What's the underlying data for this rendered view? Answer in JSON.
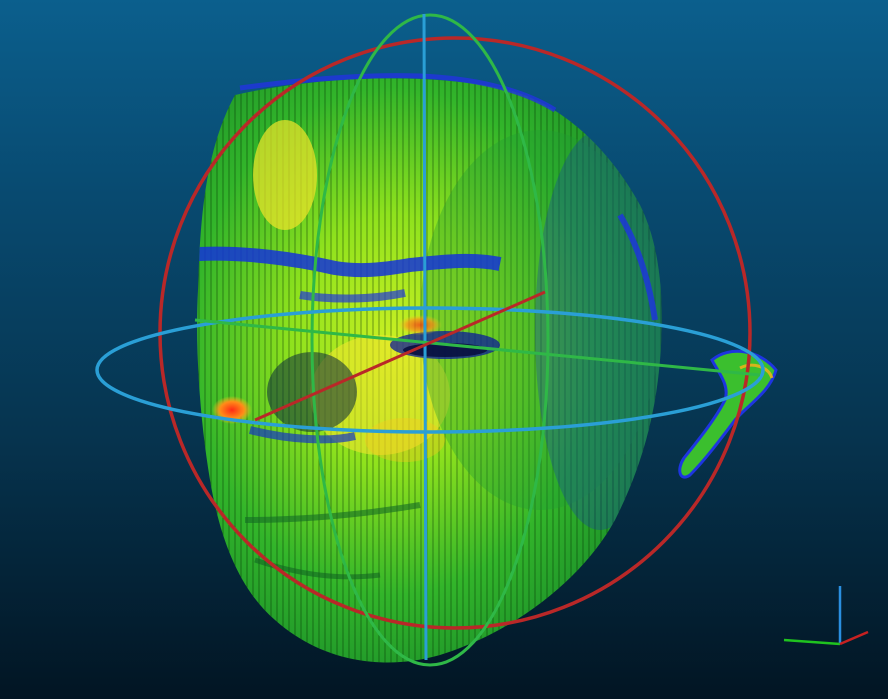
{
  "viewer": {
    "background_top": "#0b5f8d",
    "background_bottom": "#021523"
  },
  "point_cloud": {
    "subject": "scanned-head",
    "color_scale": [
      "#0b1fd0",
      "#21a9ff",
      "#33d12c",
      "#9ff014",
      "#ffe021",
      "#ff6a18",
      "#e81e12"
    ]
  },
  "rotation_sphere": {
    "x_ring_color": "#b92828",
    "y_ring_color": "#2fb847",
    "z_ring_color": "#2a9fd6"
  },
  "axes_indicator": {
    "x_color": "#c72121",
    "y_color": "#1fc31f",
    "z_color": "#2a8fe0"
  }
}
